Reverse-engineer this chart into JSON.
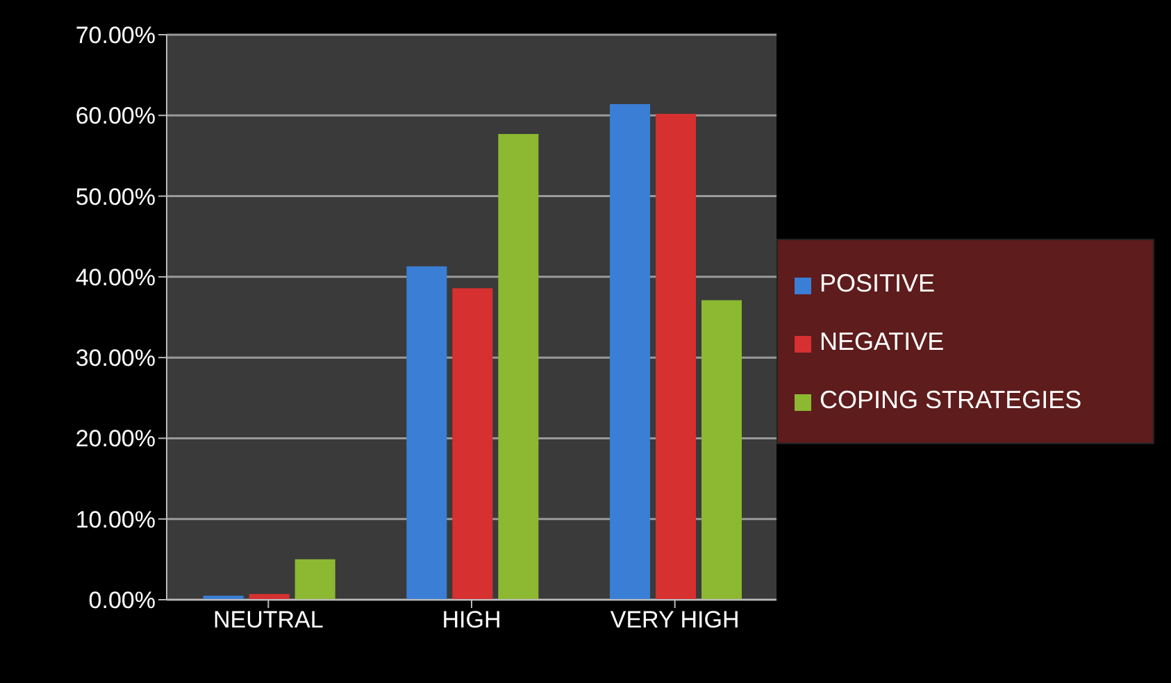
{
  "chart_data": {
    "type": "bar",
    "categories": [
      "NEUTRAL",
      "HIGH",
      "VERY HIGH"
    ],
    "series": [
      {
        "name": "POSITIVE",
        "color": "#3a7fd5",
        "values": [
          0.5,
          41.3,
          61.4
        ]
      },
      {
        "name": "NEGATIVE",
        "color": "#d63030",
        "values": [
          0.7,
          38.6,
          60.2
        ]
      },
      {
        "name": "COPING STRATEGIES",
        "color": "#8cb832",
        "values": [
          5.0,
          57.7,
          37.1
        ]
      }
    ],
    "ylim": [
      0,
      70
    ],
    "yticks": [
      {
        "value": 0,
        "label": "0.00%"
      },
      {
        "value": 10,
        "label": "10.00%"
      },
      {
        "value": 20,
        "label": "20.00%"
      },
      {
        "value": 30,
        "label": "30.00%"
      },
      {
        "value": 40,
        "label": "40.00%"
      },
      {
        "value": 50,
        "label": "50.00%"
      },
      {
        "value": 60,
        "label": "60.00%"
      },
      {
        "value": 70,
        "label": "70.00%"
      }
    ],
    "grid": "y",
    "legend": "right"
  }
}
